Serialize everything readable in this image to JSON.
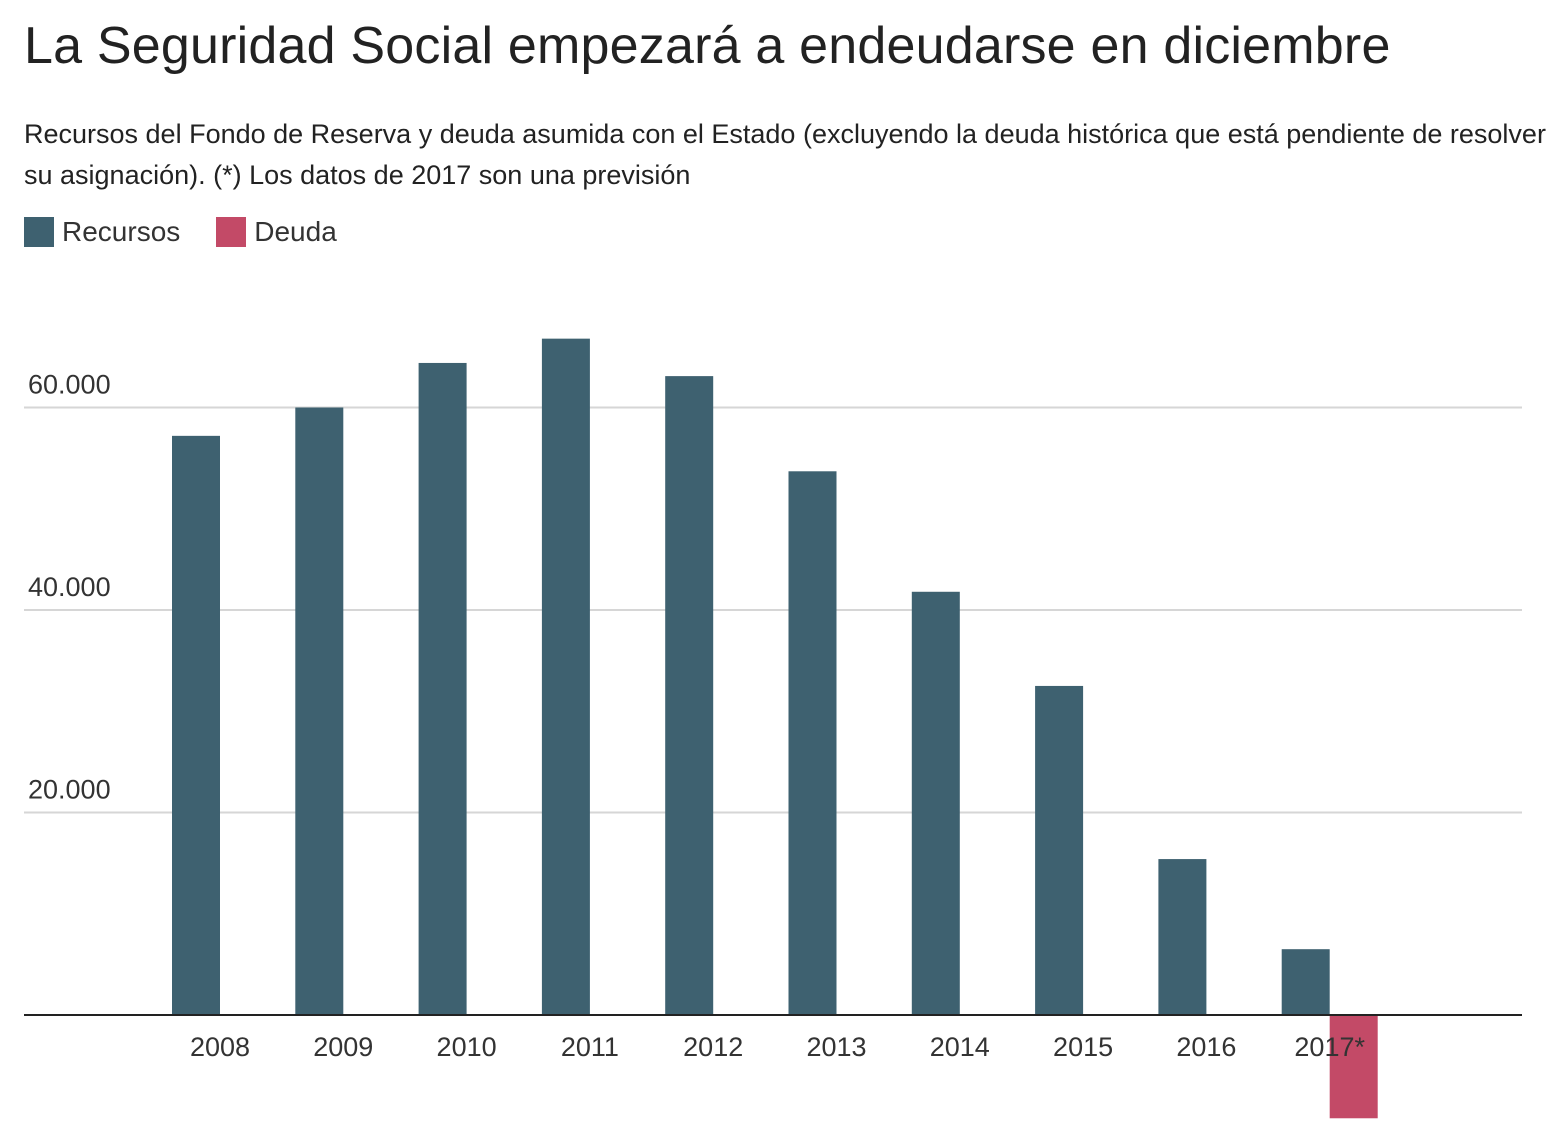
{
  "title": "La Seguridad Social empezará a endeudarse en diciembre",
  "subtitle": "Recursos del Fondo de Reserva y deuda asumida con el Estado (excluyendo la deuda histórica que está pendiente de resolver su asignación). (*) Los datos de 2017 son una previsión",
  "colors": {
    "recursos": "#3e6170",
    "deuda": "#c34a67",
    "grid": "#d6d6d6",
    "axis": "#222222"
  },
  "chart_data": {
    "type": "bar",
    "categories": [
      "2008",
      "2009",
      "2010",
      "2011",
      "2012",
      "2013",
      "2014",
      "2015",
      "2016",
      "2017*"
    ],
    "series": [
      {
        "name": "Recursos",
        "values": [
          57200,
          60000,
          64400,
          66800,
          63100,
          53700,
          41800,
          32500,
          15400,
          6500
        ]
      },
      {
        "name": "Deuda",
        "values": [
          0,
          0,
          0,
          0,
          0,
          0,
          0,
          0,
          0,
          -10200
        ]
      }
    ],
    "yticks": [
      {
        "value": 20000,
        "label": "20.000"
      },
      {
        "value": 40000,
        "label": "40.000"
      },
      {
        "value": 60000,
        "label": "60.000"
      }
    ],
    "ylim": [
      -10200,
      68000
    ],
    "legend_position": "top-left",
    "grid": true
  }
}
